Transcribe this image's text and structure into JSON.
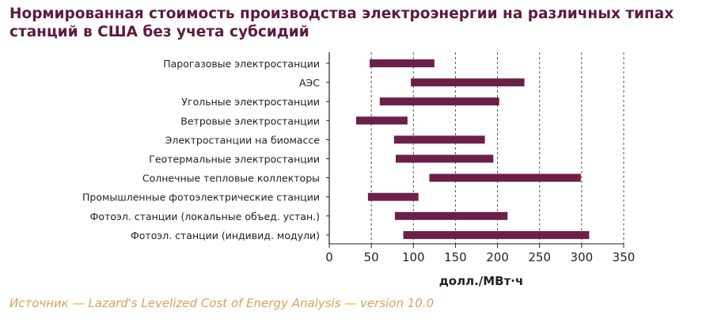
{
  "page": {
    "title": "Нормированная стоимость производства электроэнергии на различных типах станций в США без учета субсидий",
    "source": "Источник — Lazard's Levelized Cost of Energy Analysis — version 10.0"
  },
  "colors": {
    "title": "#5e1a40",
    "bar": "#6b1f49",
    "source": "#d9a15a",
    "grid": "#555555"
  },
  "chart_data": {
    "type": "bar",
    "orientation": "horizontal",
    "subtype": "floating-range",
    "xlabel": "долл./МВт·ч",
    "xlim": [
      0,
      350
    ],
    "xticks": [
      0,
      50,
      100,
      150,
      200,
      250,
      300,
      350
    ],
    "grid": "vertical dashed",
    "categories": [
      "Парогазовые электростанции",
      "АЭС",
      "Угольные электростанции",
      "Ветровые электростанции",
      "Электростанции на биомассе",
      "Геотермальные электростанции",
      "Солнечные тепловые коллекторы",
      "Промышленные фотоэлектрические станции",
      "Фотоэл. станции (локальные объед.  устан.)",
      "Фотоэл. станции (индивид. модули)"
    ],
    "ranges": [
      [
        48,
        125
      ],
      [
        97,
        232
      ],
      [
        60,
        202
      ],
      [
        32,
        93
      ],
      [
        77,
        185
      ],
      [
        79,
        195
      ],
      [
        119,
        299
      ],
      [
        46,
        106
      ],
      [
        78,
        212
      ],
      [
        88,
        309
      ]
    ]
  }
}
